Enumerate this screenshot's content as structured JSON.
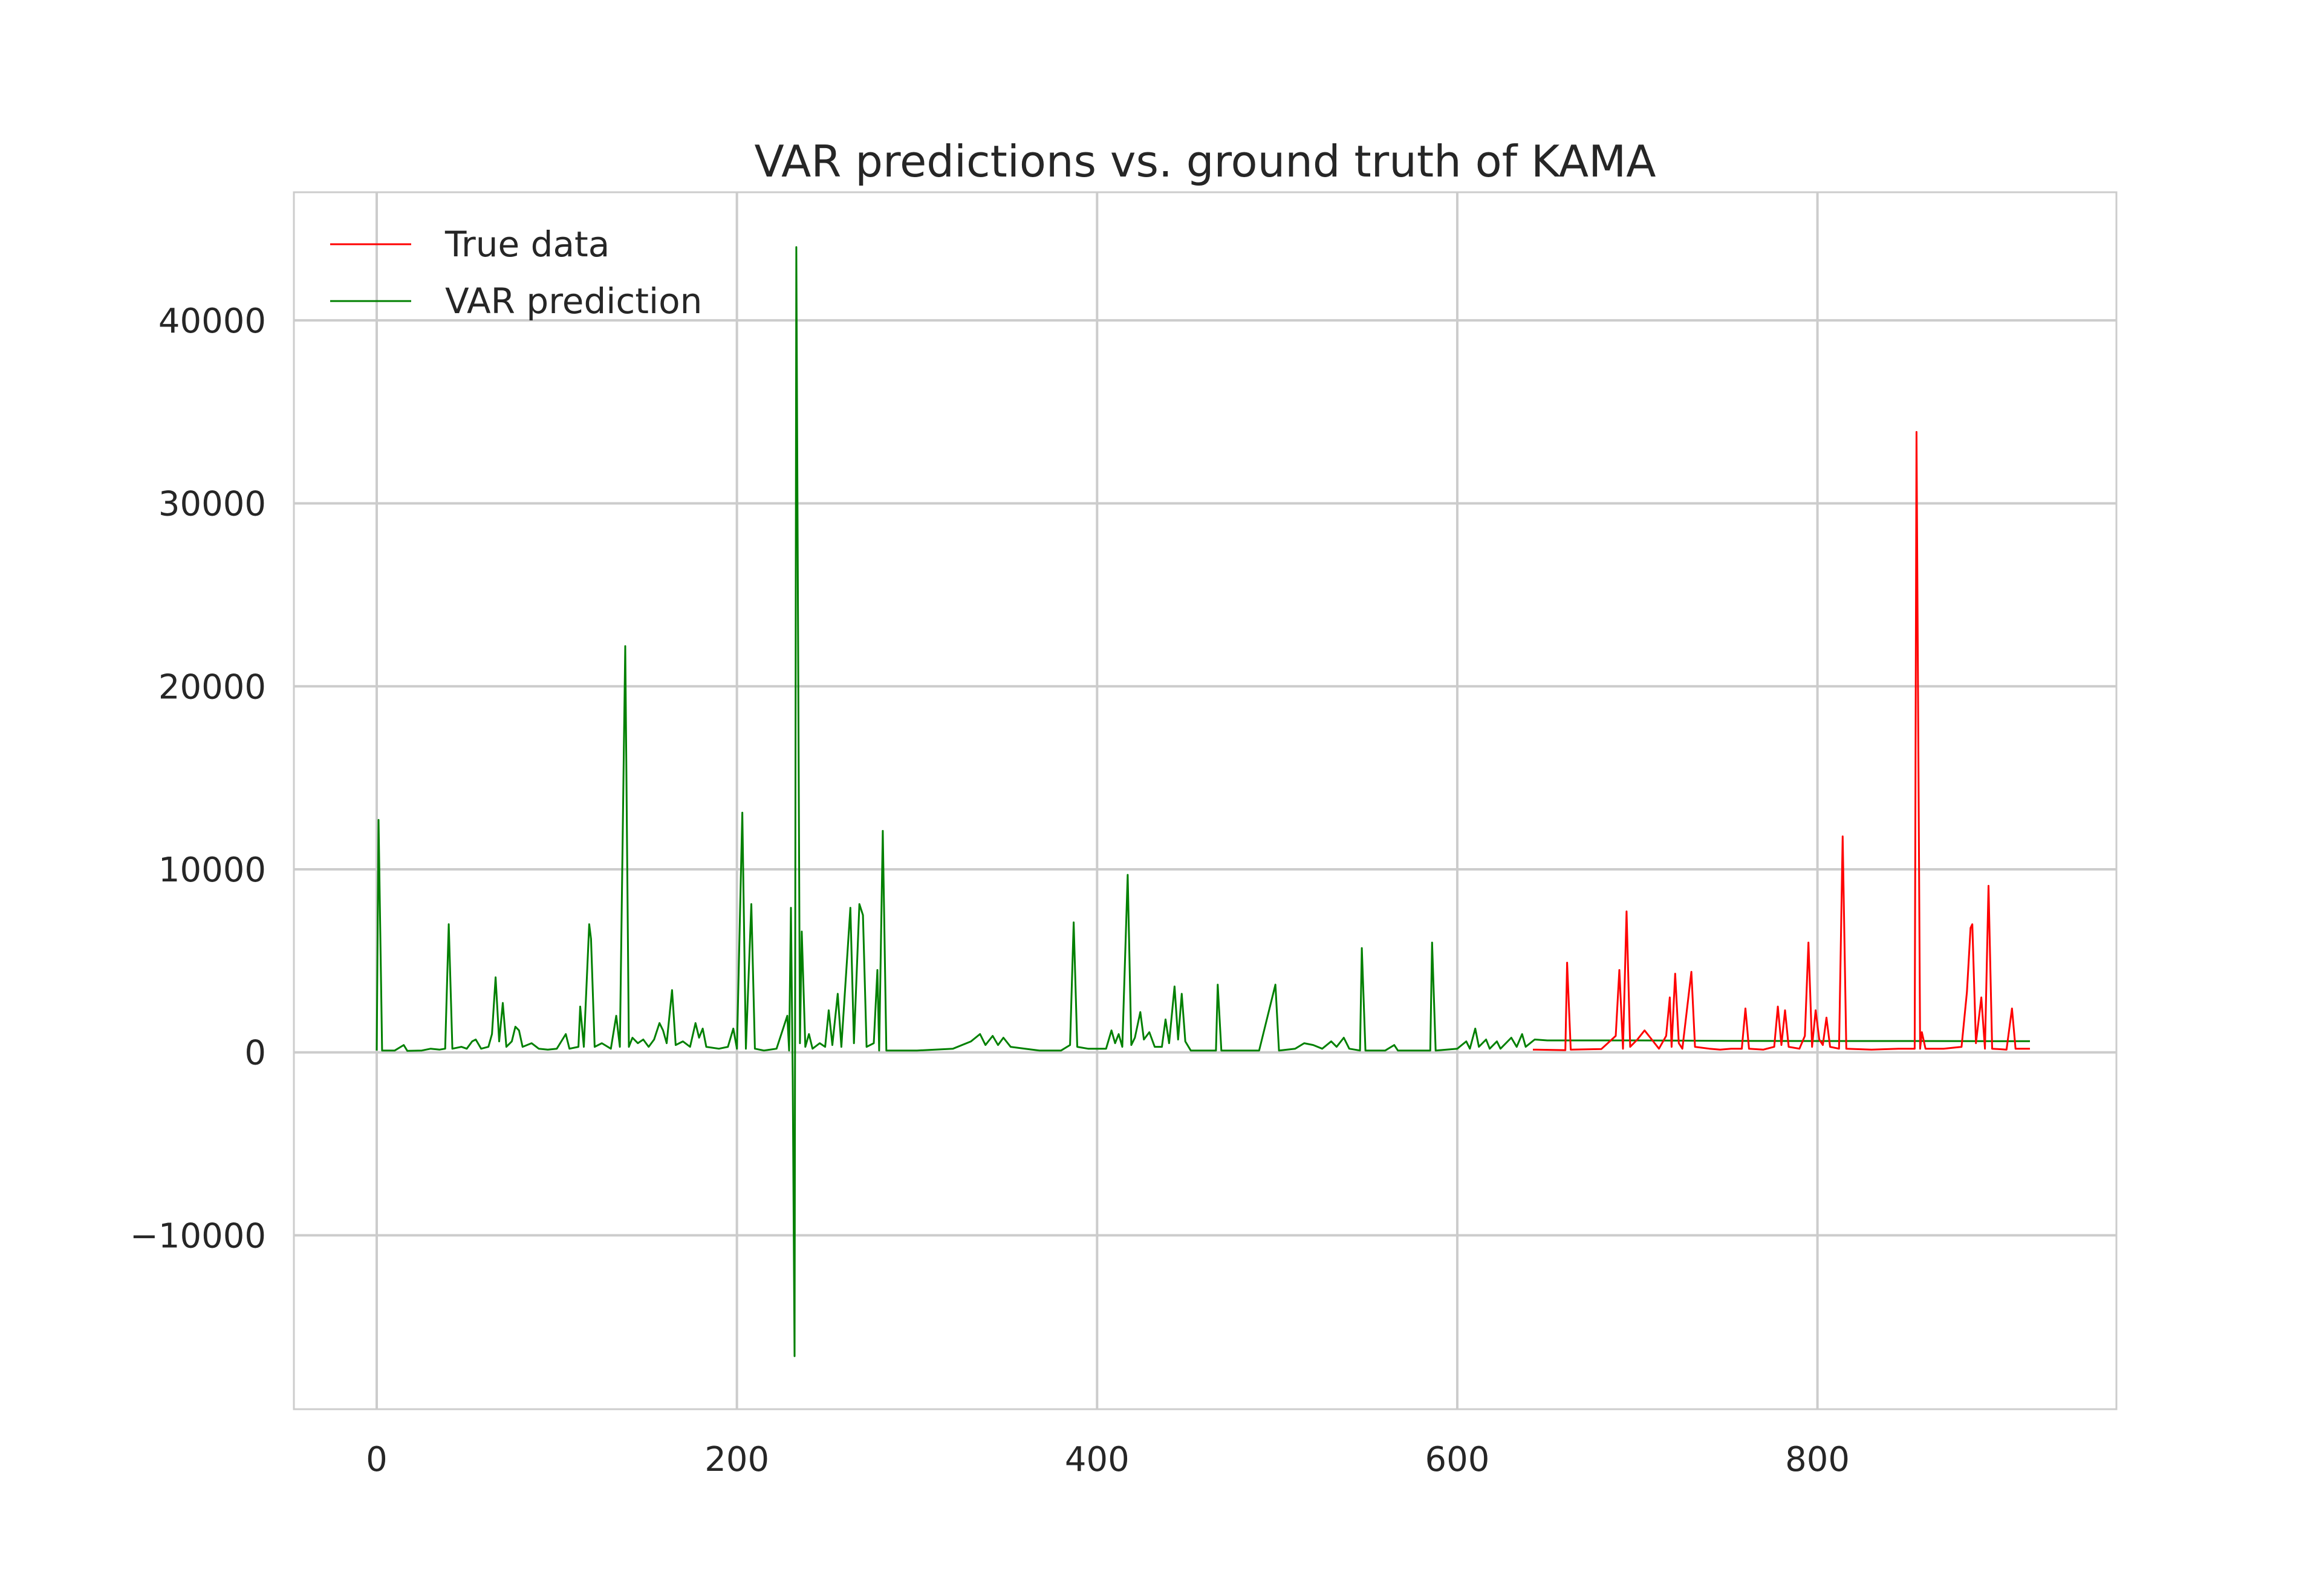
{
  "chart_data": {
    "type": "line",
    "title": "VAR predictions vs. ground truth of KAMA",
    "xlabel": "",
    "ylabel": "",
    "xlim": [
      -46,
      966
    ],
    "ylim": [
      -19500,
      47000
    ],
    "xticks": [
      0,
      200,
      400,
      600,
      800
    ],
    "yticks": [
      -10000,
      0,
      10000,
      20000,
      30000,
      40000
    ],
    "ytick_labels": [
      "−10000",
      "0",
      "10000",
      "20000",
      "30000",
      "40000"
    ],
    "grid": true,
    "legend": "top-left",
    "series": [
      {
        "name": "True data",
        "color": "#ff0000",
        "points": [
          [
            642,
            150
          ],
          [
            660,
            120
          ],
          [
            661,
            4900
          ],
          [
            663,
            150
          ],
          [
            680,
            180
          ],
          [
            688,
            900
          ],
          [
            690,
            4500
          ],
          [
            692,
            200
          ],
          [
            694,
            7700
          ],
          [
            696,
            300
          ],
          [
            700,
            700
          ],
          [
            704,
            1200
          ],
          [
            708,
            700
          ],
          [
            712,
            200
          ],
          [
            716,
            900
          ],
          [
            718,
            3000
          ],
          [
            719,
            300
          ],
          [
            721,
            4300
          ],
          [
            723,
            500
          ],
          [
            725,
            200
          ],
          [
            730,
            4400
          ],
          [
            732,
            300
          ],
          [
            740,
            200
          ],
          [
            746,
            150
          ],
          [
            752,
            200
          ],
          [
            758,
            200
          ],
          [
            760,
            2400
          ],
          [
            762,
            200
          ],
          [
            770,
            150
          ],
          [
            776,
            300
          ],
          [
            778,
            2500
          ],
          [
            780,
            400
          ],
          [
            782,
            2300
          ],
          [
            784,
            300
          ],
          [
            790,
            200
          ],
          [
            793,
            900
          ],
          [
            795,
            6000
          ],
          [
            797,
            300
          ],
          [
            799,
            2300
          ],
          [
            801,
            700
          ],
          [
            803,
            400
          ],
          [
            805,
            1900
          ],
          [
            807,
            300
          ],
          [
            812,
            200
          ],
          [
            814,
            11800
          ],
          [
            816,
            200
          ],
          [
            830,
            150
          ],
          [
            845,
            200
          ],
          [
            854,
            200
          ],
          [
            855,
            33900
          ],
          [
            857,
            200
          ],
          [
            858,
            1100
          ],
          [
            860,
            200
          ],
          [
            870,
            200
          ],
          [
            880,
            300
          ],
          [
            883,
            3300
          ],
          [
            885,
            6800
          ],
          [
            886,
            7000
          ],
          [
            888,
            500
          ],
          [
            891,
            3000
          ],
          [
            893,
            200
          ],
          [
            895,
            9100
          ],
          [
            897,
            200
          ],
          [
            905,
            150
          ],
          [
            908,
            2400
          ],
          [
            910,
            200
          ],
          [
            918,
            200
          ]
        ]
      },
      {
        "name": "VAR prediction",
        "color": "#008000",
        "points": [
          [
            0,
            100
          ],
          [
            1,
            12700
          ],
          [
            3,
            100
          ],
          [
            10,
            100
          ],
          [
            15,
            400
          ],
          [
            17,
            80
          ],
          [
            25,
            100
          ],
          [
            30,
            200
          ],
          [
            35,
            150
          ],
          [
            38,
            200
          ],
          [
            40,
            7000
          ],
          [
            42,
            200
          ],
          [
            47,
            300
          ],
          [
            50,
            200
          ],
          [
            53,
            600
          ],
          [
            55,
            700
          ],
          [
            58,
            200
          ],
          [
            62,
            300
          ],
          [
            64,
            1000
          ],
          [
            66,
            4100
          ],
          [
            68,
            600
          ],
          [
            70,
            2700
          ],
          [
            72,
            300
          ],
          [
            75,
            600
          ],
          [
            77,
            1400
          ],
          [
            79,
            1200
          ],
          [
            81,
            300
          ],
          [
            86,
            500
          ],
          [
            90,
            200
          ],
          [
            95,
            150
          ],
          [
            100,
            200
          ],
          [
            105,
            1000
          ],
          [
            107,
            200
          ],
          [
            112,
            300
          ],
          [
            113,
            2500
          ],
          [
            115,
            300
          ],
          [
            118,
            7000
          ],
          [
            119,
            6200
          ],
          [
            121,
            300
          ],
          [
            125,
            500
          ],
          [
            130,
            200
          ],
          [
            133,
            2000
          ],
          [
            135,
            300
          ],
          [
            138,
            22200
          ],
          [
            140,
            300
          ],
          [
            142,
            800
          ],
          [
            145,
            500
          ],
          [
            148,
            700
          ],
          [
            151,
            300
          ],
          [
            154,
            700
          ],
          [
            157,
            1600
          ],
          [
            159,
            1200
          ],
          [
            161,
            500
          ],
          [
            164,
            3400
          ],
          [
            166,
            400
          ],
          [
            170,
            600
          ],
          [
            174,
            300
          ],
          [
            177,
            1600
          ],
          [
            179,
            800
          ],
          [
            181,
            1300
          ],
          [
            183,
            300
          ],
          [
            190,
            200
          ],
          [
            195,
            300
          ],
          [
            198,
            1300
          ],
          [
            200,
            200
          ],
          [
            203,
            13100
          ],
          [
            205,
            200
          ],
          [
            208,
            8100
          ],
          [
            210,
            200
          ],
          [
            215,
            100
          ],
          [
            222,
            200
          ],
          [
            228,
            2000
          ],
          [
            229,
            100
          ],
          [
            230,
            7900
          ],
          [
            231,
            -1500
          ],
          [
            232,
            -16600
          ],
          [
            233,
            44000
          ],
          [
            235,
            500
          ],
          [
            236,
            6600
          ],
          [
            238,
            300
          ],
          [
            240,
            1000
          ],
          [
            242,
            200
          ],
          [
            246,
            500
          ],
          [
            249,
            300
          ],
          [
            251,
            2300
          ],
          [
            253,
            400
          ],
          [
            256,
            3200
          ],
          [
            258,
            300
          ],
          [
            263,
            7900
          ],
          [
            265,
            500
          ],
          [
            268,
            8100
          ],
          [
            270,
            7500
          ],
          [
            272,
            300
          ],
          [
            276,
            500
          ],
          [
            278,
            4500
          ],
          [
            279,
            100
          ],
          [
            281,
            12100
          ],
          [
            283,
            100
          ],
          [
            300,
            100
          ],
          [
            320,
            200
          ],
          [
            330,
            600
          ],
          [
            335,
            1000
          ],
          [
            338,
            400
          ],
          [
            342,
            900
          ],
          [
            345,
            400
          ],
          [
            348,
            800
          ],
          [
            352,
            300
          ],
          [
            360,
            200
          ],
          [
            368,
            100
          ],
          [
            380,
            100
          ],
          [
            385,
            400
          ],
          [
            387,
            7100
          ],
          [
            389,
            300
          ],
          [
            395,
            200
          ],
          [
            405,
            200
          ],
          [
            408,
            1200
          ],
          [
            410,
            500
          ],
          [
            412,
            1000
          ],
          [
            414,
            300
          ],
          [
            417,
            9700
          ],
          [
            419,
            400
          ],
          [
            421,
            800
          ],
          [
            424,
            2200
          ],
          [
            426,
            700
          ],
          [
            429,
            1100
          ],
          [
            432,
            300
          ],
          [
            436,
            300
          ],
          [
            438,
            1800
          ],
          [
            440,
            500
          ],
          [
            443,
            3600
          ],
          [
            445,
            700
          ],
          [
            447,
            3200
          ],
          [
            449,
            600
          ],
          [
            452,
            100
          ],
          [
            466,
            100
          ],
          [
            467,
            3700
          ],
          [
            469,
            100
          ],
          [
            490,
            100
          ],
          [
            499,
            3700
          ],
          [
            501,
            100
          ],
          [
            510,
            200
          ],
          [
            515,
            500
          ],
          [
            520,
            400
          ],
          [
            525,
            200
          ],
          [
            530,
            600
          ],
          [
            533,
            300
          ],
          [
            537,
            800
          ],
          [
            540,
            200
          ],
          [
            546,
            100
          ],
          [
            547,
            5700
          ],
          [
            549,
            100
          ],
          [
            560,
            100
          ],
          [
            565,
            400
          ],
          [
            567,
            100
          ],
          [
            578,
            100
          ],
          [
            585,
            100
          ],
          [
            586,
            6000
          ],
          [
            588,
            100
          ],
          [
            600,
            200
          ],
          [
            605,
            600
          ],
          [
            607,
            200
          ],
          [
            610,
            1300
          ],
          [
            612,
            300
          ],
          [
            616,
            700
          ],
          [
            618,
            200
          ],
          [
            622,
            600
          ],
          [
            624,
            200
          ],
          [
            630,
            800
          ],
          [
            633,
            300
          ],
          [
            636,
            1000
          ],
          [
            638,
            300
          ],
          [
            643,
            700
          ],
          [
            650,
            650
          ],
          [
            700,
            650
          ],
          [
            750,
            630
          ],
          [
            800,
            620
          ],
          [
            850,
            620
          ],
          [
            918,
            610
          ]
        ]
      }
    ]
  }
}
